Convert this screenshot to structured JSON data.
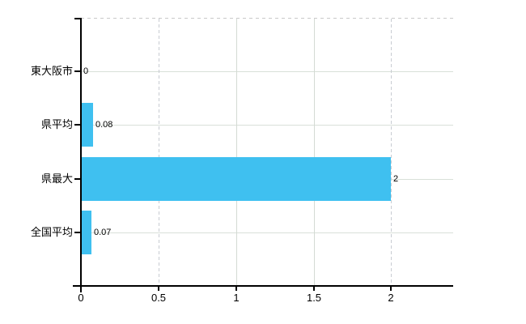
{
  "page": {
    "background": "#ffffff"
  },
  "chart_data": {
    "type": "bar",
    "orientation": "horizontal",
    "title": "",
    "xlabel": "",
    "ylabel": "",
    "categories": [
      "東大阪市",
      "県平均",
      "県最大",
      "全国平均"
    ],
    "values": [
      0,
      0.08,
      2,
      0.07
    ],
    "data_labels": [
      "0",
      "0.08",
      "2",
      "0.07"
    ],
    "x_ticks": [
      0,
      0.5,
      1,
      1.5,
      2
    ],
    "x_tick_labels": [
      "0",
      "0.5",
      "1",
      "1.5",
      "2"
    ],
    "xlim": [
      0,
      2.4
    ],
    "grid": true,
    "legend": "none",
    "dashed_vertical_gridlines": [
      0.5,
      2
    ],
    "colors": {
      "bar": "#3fc0f0",
      "axis": "#000000",
      "text": "#000000",
      "h_grid": "#d9e0d9",
      "v_grid": "#d4dad4",
      "v_grid_dashed": "#c8ccd2",
      "top_border": "#c9c9c9"
    }
  }
}
